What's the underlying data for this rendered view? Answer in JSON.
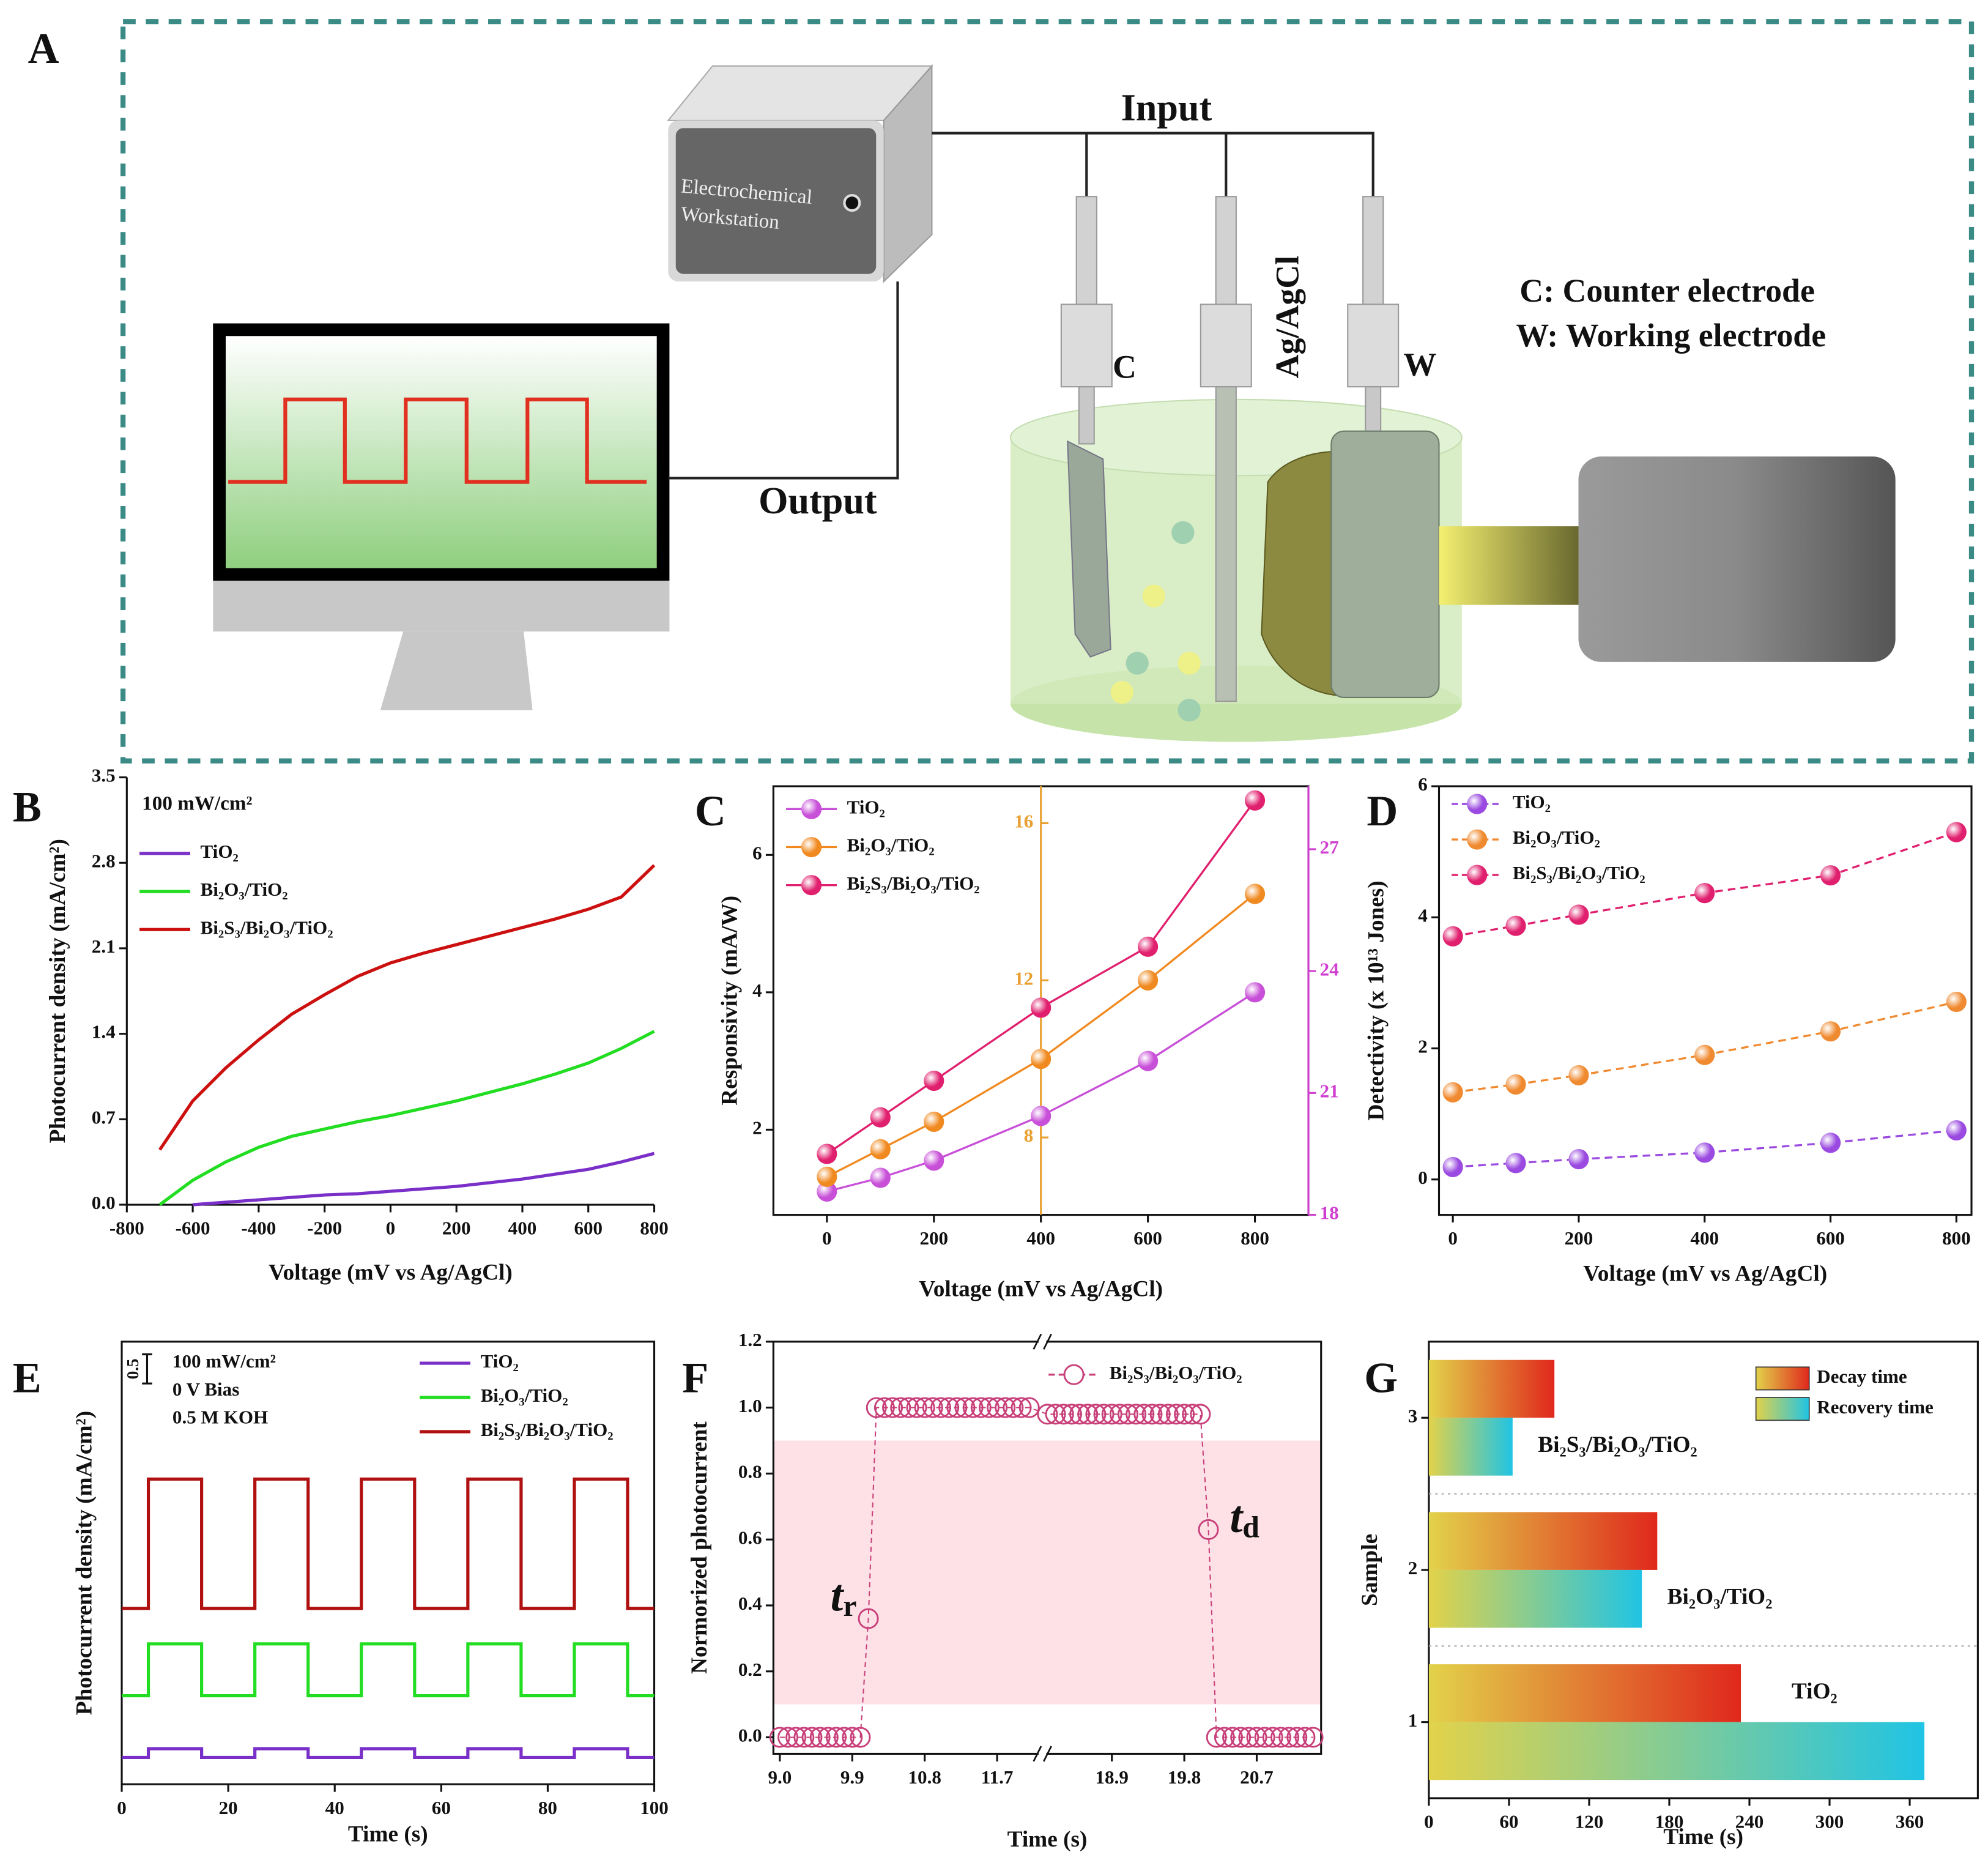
{
  "diagram": {
    "panel_label": "A",
    "input": "Input",
    "output": "Output",
    "workstation": [
      "Electrochemical",
      "Workstation"
    ],
    "electrodes": [
      "C",
      "Ag/AgCl",
      "W"
    ],
    "notes": [
      "C: Counter electrode",
      "W: Working electrode"
    ]
  },
  "chart_data": [
    {
      "panel_label": "B",
      "type": "line",
      "xlabel": "Voltage (mV vs Ag/AgCl)",
      "ylabel": "Photocurrent density (mA/cm²)",
      "annotation": "100 mW/cm²",
      "x": [
        -800,
        -700,
        -600,
        -500,
        -400,
        -300,
        -200,
        -100,
        0,
        100,
        200,
        300,
        400,
        500,
        600,
        700,
        800
      ],
      "series": [
        {
          "name": "TiO₂",
          "color": "#7a30c8",
          "values": [
            null,
            null,
            0,
            0.02,
            0.04,
            0.06,
            0.08,
            0.09,
            0.11,
            0.13,
            0.15,
            0.18,
            0.21,
            0.25,
            0.29,
            0.35,
            0.42
          ]
        },
        {
          "name": "Bi₂O₃/TiO₂",
          "color": "#22dd22",
          "values": [
            null,
            0,
            0.2,
            0.35,
            0.47,
            0.56,
            0.62,
            0.68,
            0.73,
            0.79,
            0.85,
            0.92,
            0.99,
            1.07,
            1.16,
            1.28,
            1.42
          ]
        },
        {
          "name": "Bi₂S₃/Bi₂O₃/TiO₂",
          "color": "#cc1010",
          "values": [
            null,
            0.45,
            0.85,
            1.12,
            1.35,
            1.56,
            1.72,
            1.87,
            1.98,
            2.06,
            2.13,
            2.2,
            2.27,
            2.34,
            2.42,
            2.52,
            2.78
          ]
        }
      ],
      "xlim": [
        -800,
        800
      ],
      "xticks": [
        -800,
        -600,
        -400,
        -200,
        0,
        200,
        400,
        600,
        800
      ],
      "ylim": [
        0,
        3.5
      ],
      "yticks": [
        {
          "value": 0,
          "label": "0.0"
        },
        0.7,
        1.4,
        2.1,
        2.8,
        3.5
      ],
      "legend": "upper left"
    },
    {
      "panel_label": "C",
      "type": "line",
      "markers": true,
      "xlabel": "Voltage (mV vs Ag/AgCl)",
      "ylabel": "Responsivity (mA/W)",
      "x": [
        0,
        100,
        200,
        400,
        600,
        800
      ],
      "series": [
        {
          "name": "TiO₂",
          "color": "#c84fd8",
          "values": [
            1.1,
            1.3,
            1.55,
            2.2,
            3.0,
            4.0
          ]
        },
        {
          "name": "Bi₂O₃/TiO₂",
          "color": "#f08a20",
          "axis": "y2",
          "values": [
            7.0,
            7.7,
            8.4,
            10.0,
            12.0,
            14.2
          ]
        },
        {
          "name": "Bi₂S₃/Bi₂O₃/TiO₂",
          "color": "#e0206e",
          "axis": "y3",
          "values": [
            19.5,
            20.4,
            21.3,
            23.1,
            24.6,
            28.2
          ]
        }
      ],
      "xlim": [
        -100,
        900
      ],
      "xticks": [
        0,
        200,
        400,
        600,
        800
      ],
      "ylim": [
        0.76,
        7
      ],
      "yticks": [
        2,
        4,
        6
      ],
      "y2lim": [
        6.03,
        16.94
      ],
      "y2ticks": [
        8,
        12,
        16
      ],
      "y2color": "#e8a030",
      "y3lim": [
        18,
        28.55
      ],
      "y3ticks": [
        18,
        21,
        24,
        27
      ],
      "y3color": "#d040d0",
      "legend": "upper left"
    },
    {
      "panel_label": "D",
      "type": "scatter",
      "connect": "dashed",
      "xlabel": "Voltage (mV vs Ag/AgCl)",
      "ylabel": "Detectivity (x 10¹³ Jones)",
      "x": [
        0,
        100,
        200,
        400,
        600,
        800
      ],
      "series": [
        {
          "name": "TiO₂",
          "color": "#9a4ae0",
          "values": [
            0.19,
            0.25,
            0.31,
            0.41,
            0.56,
            0.75
          ]
        },
        {
          "name": "Bi₂O₃/TiO₂",
          "color": "#f08a30",
          "values": [
            1.33,
            1.45,
            1.59,
            1.9,
            2.26,
            2.71
          ]
        },
        {
          "name": "Bi₂S₃/Bi₂O₃/TiO₂",
          "color": "#e0206e",
          "values": [
            3.71,
            3.87,
            4.04,
            4.37,
            4.64,
            5.3
          ]
        }
      ],
      "xlim": [
        -22,
        824
      ],
      "xticks": [
        0,
        200,
        400,
        600,
        800
      ],
      "ylim": [
        -0.54,
        6
      ],
      "yticks": [
        0,
        2,
        4,
        6
      ],
      "legend": "upper left"
    },
    {
      "panel_label": "E",
      "type": "line",
      "xlabel": "Time (s)",
      "ylabel": "Photocurrent density (mA/cm²)",
      "annotations": [
        "100 mW/cm²",
        "0 V Bias",
        "0.5 M KOH"
      ],
      "scale_bar": 0.5,
      "x": [
        0,
        5,
        5,
        15,
        15,
        25,
        25,
        35,
        35,
        45,
        45,
        55,
        55,
        65,
        65,
        75,
        75,
        85,
        85,
        95,
        95,
        100
      ],
      "series": [
        {
          "name": "TiO₂",
          "color": "#7a30c8",
          "values": [
            0.46,
            0.46,
            0.61,
            0.61,
            0.46,
            0.46,
            0.61,
            0.61,
            0.46,
            0.46,
            0.61,
            0.61,
            0.46,
            0.46,
            0.61,
            0.61,
            0.46,
            0.46,
            0.61,
            0.61,
            0.46,
            0.46
          ]
        },
        {
          "name": "Bi₂O₃/TiO₂",
          "color": "#22dd22",
          "values": [
            1.52,
            1.52,
            2.41,
            2.41,
            1.52,
            1.52,
            2.41,
            2.41,
            1.52,
            1.52,
            2.41,
            2.41,
            1.52,
            1.52,
            2.41,
            2.41,
            1.52,
            1.52,
            2.41,
            2.41,
            1.52,
            1.52
          ]
        },
        {
          "name": "Bi₂S₃/Bi₂O₃/TiO₂",
          "color": "#b01010",
          "values": [
            3.02,
            3.02,
            5.24,
            5.24,
            3.02,
            3.02,
            5.24,
            5.24,
            3.02,
            3.02,
            5.24,
            5.24,
            3.02,
            3.02,
            5.24,
            5.24,
            3.02,
            3.02,
            5.24,
            5.24,
            3.02,
            3.02
          ]
        }
      ],
      "xlim": [
        0,
        100
      ],
      "xticks": [
        0,
        20,
        40,
        60,
        80,
        100
      ],
      "ylim": [
        0,
        7.6
      ],
      "legend": "upper right"
    },
    {
      "panel_label": "F",
      "type": "scatter",
      "connect": "thin",
      "marker_fill": "none",
      "xlabel": "Time (s)",
      "ylabel": "Normorized photocurrent",
      "annotations": [
        {
          "text": "t",
          "sub": "r"
        },
        {
          "text": "t",
          "sub": "d"
        }
      ],
      "band": [
        0.1,
        0.9
      ],
      "band_color": "#fde1e6",
      "x": [
        9,
        9.1,
        9.2,
        9.3,
        9.4,
        9.5,
        9.6,
        9.7,
        9.8,
        9.9,
        10,
        10.1,
        10.2,
        10.3,
        10.4,
        10.5,
        10.6,
        10.7,
        10.8,
        10.9,
        11,
        11.1,
        11.2,
        11.3,
        11.4,
        11.5,
        11.6,
        11.7,
        11.8,
        11.9,
        12,
        12.1,
        18.1,
        18.2,
        18.3,
        18.4,
        18.5,
        18.6,
        18.7,
        18.8,
        18.9,
        19,
        19.1,
        19.2,
        19.3,
        19.4,
        19.5,
        19.6,
        19.7,
        19.8,
        19.9,
        20,
        20.1,
        20.2,
        20.3,
        20.4,
        20.5,
        20.6,
        20.7,
        20.8,
        20.9,
        21,
        21.1,
        21.2,
        21.3,
        21.4
      ],
      "series": [
        {
          "name": "Bi₂S₃/Bi₂O₃/TiO₂",
          "color": "#c8407a",
          "values": [
            0,
            0,
            0,
            0,
            0,
            0,
            0,
            0,
            0,
            0,
            0,
            0.36,
            1,
            1,
            1,
            1,
            1,
            1,
            1,
            1,
            1,
            1,
            1,
            1,
            1,
            1,
            1,
            1,
            1,
            1,
            1,
            1,
            0.98,
            0.98,
            0.98,
            0.98,
            0.98,
            0.98,
            0.98,
            0.98,
            0.98,
            0.98,
            0.98,
            0.98,
            0.98,
            0.98,
            0.98,
            0.98,
            0.98,
            0.98,
            0.98,
            0.98,
            0.63,
            0,
            0,
            0,
            0,
            0,
            0,
            0,
            0,
            0,
            0,
            0,
            0,
            0
          ]
        }
      ],
      "xlim": [
        8.92,
        21.5
      ],
      "xbreak": [
        12.2,
        18.1
      ],
      "xticks": [
        {
          "value": 9,
          "label": "9.0"
        },
        9.9,
        10.8,
        11.7,
        18.9,
        19.8,
        20.7
      ],
      "ylim": [
        -0.05,
        1.2
      ],
      "yticks": [
        {
          "value": 0,
          "label": "0.0"
        },
        0.2,
        0.4,
        0.6,
        0.8,
        {
          "value": 1,
          "label": "1.0"
        },
        1.2
      ],
      "legend": "upper right"
    },
    {
      "panel_label": "G",
      "type": "barh",
      "xlabel": "Time (s)",
      "ylabel": "Sample",
      "categories": [
        "1",
        "2",
        "3"
      ],
      "category_labels": [
        "TiO₂",
        "Bi₂O₃/TiO₂",
        "Bi₂S₃/Bi₂O₃/TiO₂"
      ],
      "series": [
        {
          "name": "Decay time",
          "colors": [
            "#e2d24a",
            "#e0281c"
          ],
          "values": [
            233.6,
            171,
            94
          ]
        },
        {
          "name": "Recovery time",
          "colors": [
            "#e2d24a",
            "#20c4e4"
          ],
          "values": [
            371,
            159.5,
            62.7
          ]
        }
      ],
      "xlim": [
        0,
        411
      ],
      "xticks": [
        0,
        60,
        120,
        180,
        240,
        300,
        360
      ],
      "legend": "upper right"
    }
  ]
}
